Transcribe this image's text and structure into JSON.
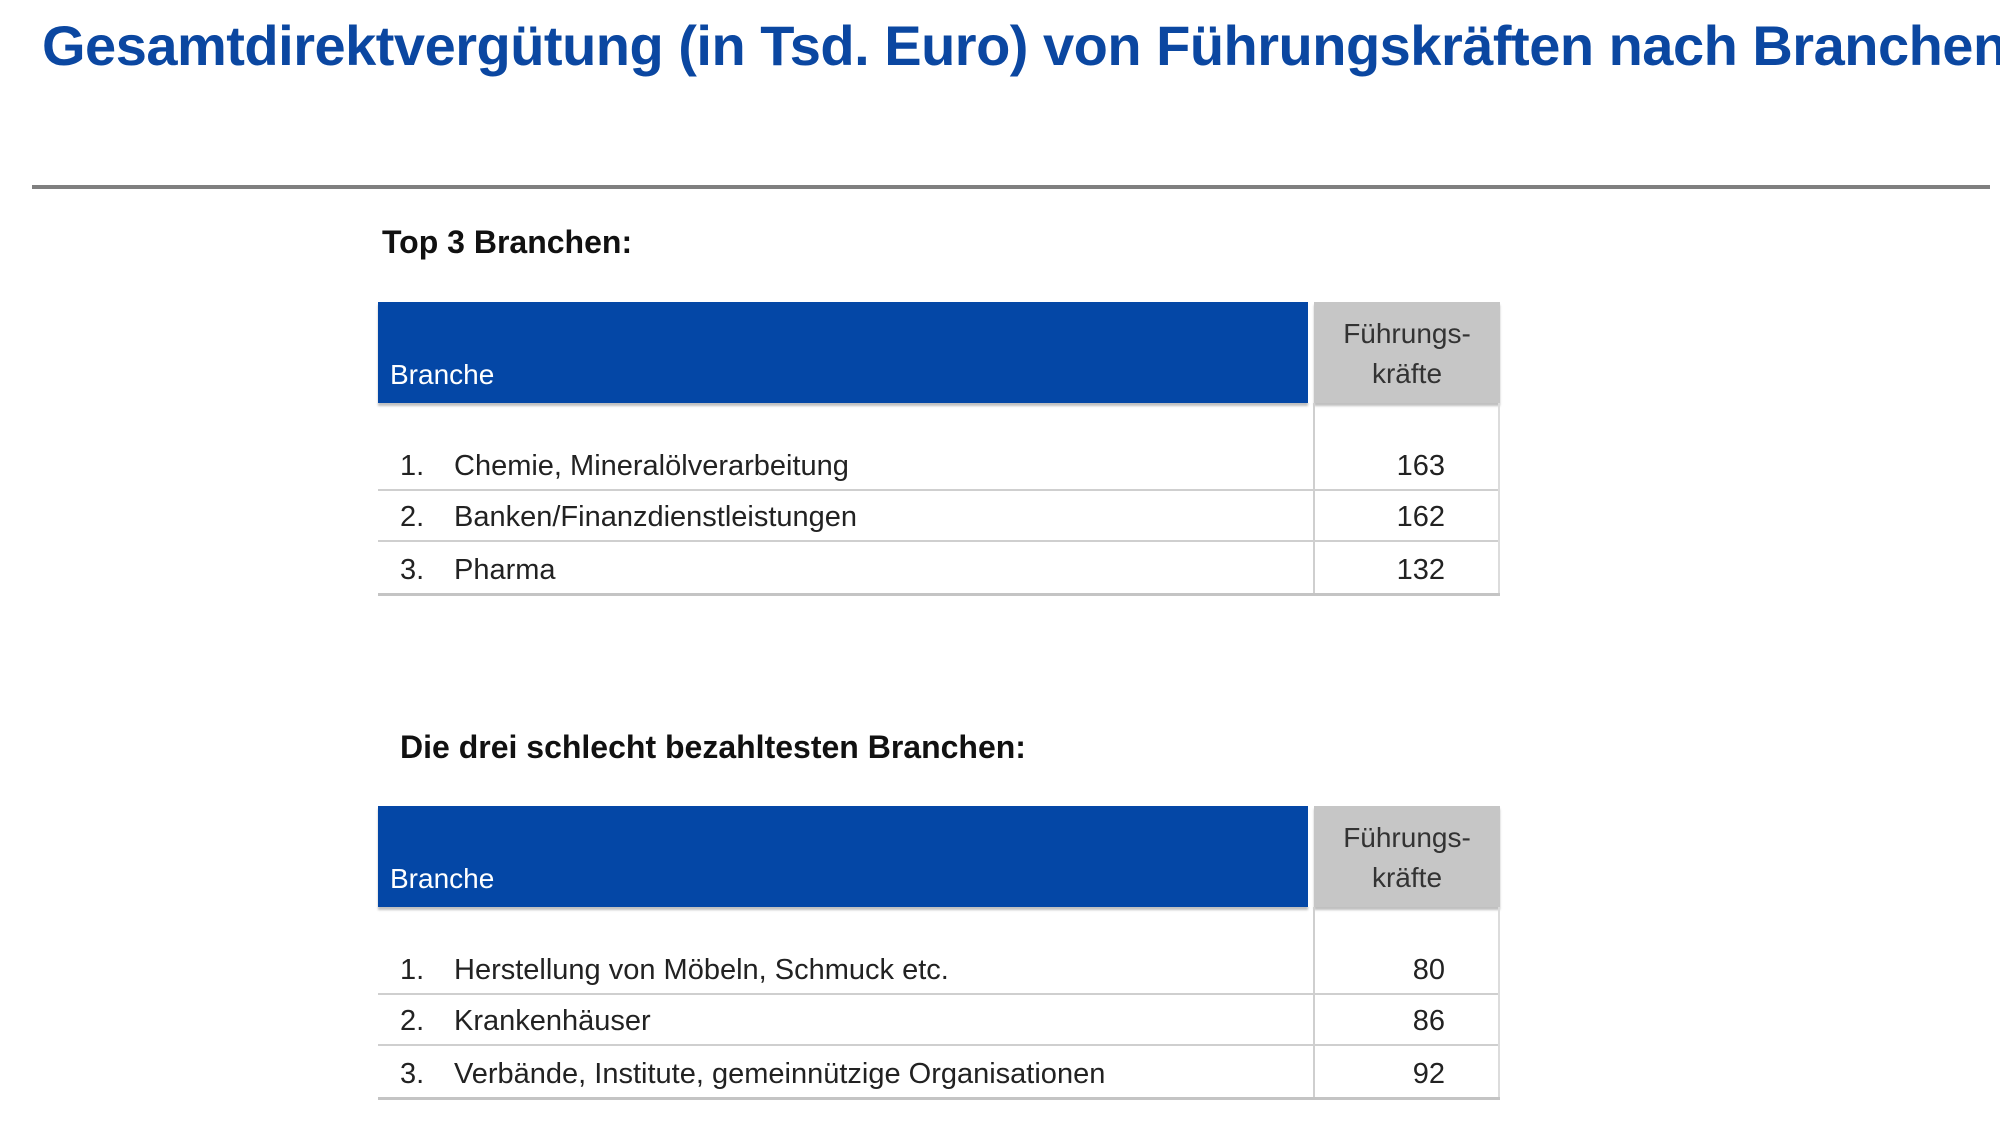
{
  "title": "Gesamtdirektvergütung (in Tsd. Euro) von Führungskräften nach Branchen",
  "sections": [
    {
      "heading": "Top 3 Branchen:",
      "table": {
        "col_branche": "Branche",
        "col_count": "Führungs-\nkräfte",
        "rows": [
          {
            "rank": "1.",
            "name": "Chemie, Mineralölverarbeitung",
            "value": "163"
          },
          {
            "rank": "2.",
            "name": "Banken/Finanzdienstleistungen",
            "value": "162"
          },
          {
            "rank": "3.",
            "name": "Pharma",
            "value": "132"
          }
        ]
      }
    },
    {
      "heading": "Die drei schlecht bezahltesten Branchen:",
      "table": {
        "col_branche": "Branche",
        "col_count": "Führungs-\nkräfte",
        "rows": [
          {
            "rank": "1.",
            "name": "Herstellung von Möbeln, Schmuck etc.",
            "value": "80"
          },
          {
            "rank": "2.",
            "name": "Krankenhäuser",
            "value": "86"
          },
          {
            "rank": "3.",
            "name": "Verbände, Institute, gemeinnützige Organisationen",
            "value": "92"
          }
        ]
      }
    }
  ],
  "colors": {
    "title_blue": "#0b47a1",
    "header_blue": "#0447a6",
    "header_gray": "#c6c6c6"
  }
}
